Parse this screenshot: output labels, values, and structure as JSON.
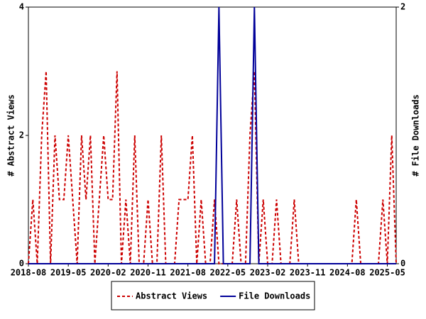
{
  "chart_data": {
    "type": "line",
    "categories": [
      "2018-08",
      null,
      null,
      null,
      null,
      null,
      null,
      null,
      null,
      "2019-05",
      null,
      null,
      null,
      null,
      null,
      null,
      null,
      null,
      "2020-02",
      null,
      null,
      null,
      null,
      null,
      null,
      null,
      null,
      "2020-11",
      null,
      null,
      null,
      null,
      null,
      null,
      null,
      null,
      "2021-08",
      null,
      null,
      null,
      null,
      null,
      null,
      null,
      null,
      "2022-05",
      null,
      null,
      null,
      null,
      null,
      null,
      null,
      null,
      "2023-02",
      null,
      null,
      null,
      null,
      null,
      null,
      null,
      null,
      "2023-11",
      null,
      null,
      null,
      null,
      null,
      null,
      null,
      null,
      "2024-08",
      null,
      null,
      null,
      null,
      null,
      null,
      null,
      null,
      "2025-05",
      null,
      null
    ],
    "ylabel": "# Abstract Views",
    "y2label": "# File Downloads",
    "ylim": [
      0,
      4
    ],
    "yticks": [
      0,
      2,
      4
    ],
    "y2lim": [
      0,
      2
    ],
    "y2ticks": [
      0,
      2
    ],
    "legend": "bottom",
    "series": [
      {
        "name": "Abstract Views",
        "color": "#cc0000",
        "style": "dashed",
        "values": [
          0,
          1,
          0,
          2,
          3,
          0,
          2,
          1,
          1,
          2,
          1,
          0,
          2,
          1,
          2,
          0,
          1,
          2,
          1,
          1,
          3,
          0,
          1,
          0,
          2,
          0,
          0,
          1,
          0,
          0,
          2,
          0,
          0,
          0,
          1,
          1,
          1,
          2,
          0,
          1,
          0,
          0,
          1,
          0,
          0,
          0,
          0,
          1,
          0,
          0,
          2,
          3,
          0,
          1,
          0,
          0,
          1,
          0,
          0,
          0,
          1,
          0,
          0,
          0,
          0,
          0,
          0,
          0,
          0,
          0,
          0,
          0,
          0,
          0,
          1,
          0,
          0,
          0,
          0,
          0,
          1,
          0,
          2,
          0
        ]
      },
      {
        "name": "File Downloads",
        "color": "#000099",
        "style": "solid",
        "axis": "y2",
        "values": [
          0,
          0,
          0,
          0,
          0,
          0,
          0,
          0,
          0,
          0,
          0,
          0,
          0,
          0,
          0,
          0,
          0,
          0,
          0,
          0,
          0,
          0,
          0,
          0,
          0,
          0,
          0,
          0,
          0,
          0,
          0,
          0,
          0,
          0,
          0,
          0,
          0,
          0,
          0,
          0,
          0,
          0,
          0,
          2,
          0,
          0,
          0,
          0,
          0,
          0,
          0,
          2,
          0,
          0,
          0,
          0,
          0,
          0,
          0,
          0,
          0,
          0,
          0,
          0,
          0,
          0,
          0,
          0,
          0,
          0,
          0,
          0,
          0,
          0,
          0,
          0,
          0,
          0,
          0,
          0,
          0,
          0,
          0,
          0
        ]
      }
    ]
  }
}
